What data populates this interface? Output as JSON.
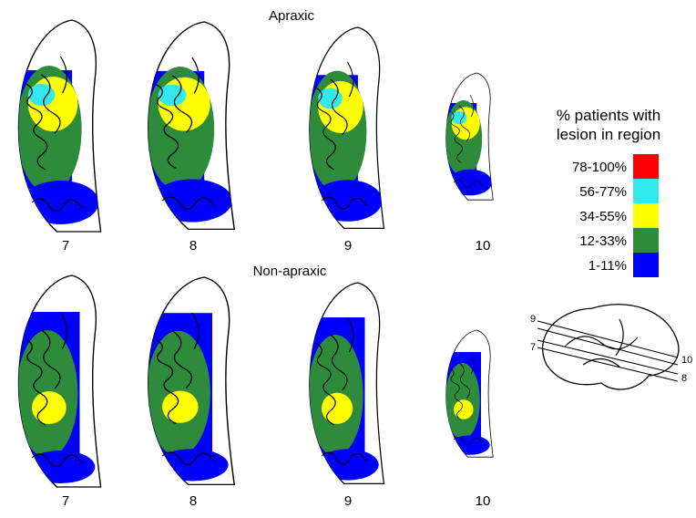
{
  "figure": {
    "top": {
      "title": "Apraxic",
      "slices": [
        "7",
        "8",
        "9",
        "10"
      ]
    },
    "bottom": {
      "title": "Non-apraxic",
      "slices": [
        "7",
        "8",
        "9",
        "10"
      ]
    },
    "legend": {
      "title_lines": [
        "% patients with",
        "lesion in region"
      ],
      "items": [
        {
          "label": "78-100%",
          "color": "#ff0000"
        },
        {
          "label": "56-77%",
          "color": "#33e8ec"
        },
        {
          "label": "34-55%",
          "color": "#ffff00"
        },
        {
          "label": "12-33%",
          "color": "#2e8b3c"
        },
        {
          "label": "1-11%",
          "color": "#0000ff"
        }
      ]
    },
    "side_view": {
      "labels": [
        "9",
        "7",
        "10",
        "8"
      ]
    }
  }
}
